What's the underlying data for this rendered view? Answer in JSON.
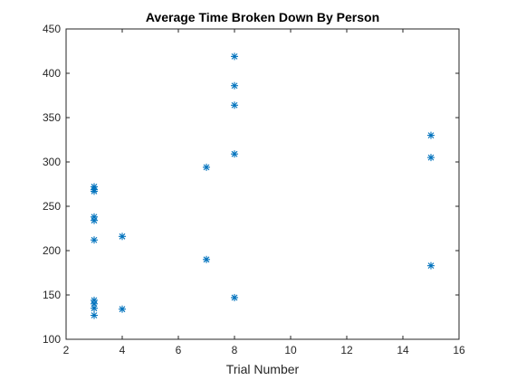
{
  "chart_data": {
    "type": "scatter",
    "title": "Average Time Broken Down By Person",
    "xlabel": "Trial Number",
    "ylabel": "",
    "xlim": [
      2,
      16
    ],
    "ylim": [
      100,
      450
    ],
    "xticks": [
      2,
      4,
      6,
      8,
      10,
      12,
      14,
      16
    ],
    "yticks": [
      100,
      150,
      200,
      250,
      300,
      350,
      400,
      450
    ],
    "grid": false,
    "marker": "asterisk",
    "color": "#0072BD",
    "series": [
      {
        "points": [
          {
            "x": 3,
            "y": 272
          },
          {
            "x": 3,
            "y": 269
          },
          {
            "x": 3,
            "y": 267
          },
          {
            "x": 3,
            "y": 238
          },
          {
            "x": 3,
            "y": 234
          },
          {
            "x": 3,
            "y": 212
          },
          {
            "x": 3,
            "y": 144
          },
          {
            "x": 3,
            "y": 140
          },
          {
            "x": 3,
            "y": 135
          },
          {
            "x": 3,
            "y": 127
          },
          {
            "x": 4,
            "y": 216
          },
          {
            "x": 4,
            "y": 134
          },
          {
            "x": 7,
            "y": 294
          },
          {
            "x": 7,
            "y": 190
          },
          {
            "x": 8,
            "y": 419
          },
          {
            "x": 8,
            "y": 386
          },
          {
            "x": 8,
            "y": 364
          },
          {
            "x": 8,
            "y": 309
          },
          {
            "x": 8,
            "y": 147
          },
          {
            "x": 15,
            "y": 330
          },
          {
            "x": 15,
            "y": 305
          },
          {
            "x": 15,
            "y": 183
          }
        ]
      }
    ]
  }
}
